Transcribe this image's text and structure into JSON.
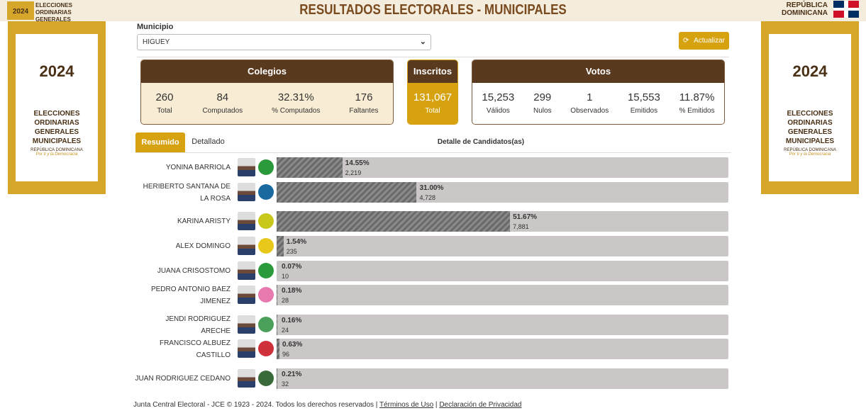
{
  "header": {
    "title": "RESULTADOS ELECTORALES - MUNICIPALES",
    "logo_text": "ELECCIONES ORDINARIAS GENERALES MUNICIPALES",
    "year": "2024",
    "country": "REPÚBLICA DOMINICANA"
  },
  "banner": {
    "year": "2024",
    "title": "ELECCIONES ORDINARIAS GENERALES MUNICIPALES",
    "country": "REPÚBLICA DOMINICANA",
    "slogan": "Por ti y la Democracia"
  },
  "filter": {
    "label": "Municipio",
    "value": "HIGUEY",
    "button": "Actualizar"
  },
  "colegios": {
    "title": "Colegios",
    "stats": [
      {
        "value": "260",
        "label": "Total"
      },
      {
        "value": "84",
        "label": "Computados"
      },
      {
        "value": "32.31%",
        "label": "% Computados"
      },
      {
        "value": "176",
        "label": "Faltantes"
      }
    ]
  },
  "inscritos": {
    "title": "Inscritos",
    "stats": [
      {
        "value": "131,067",
        "label": "Total"
      }
    ]
  },
  "votos": {
    "title": "Votos",
    "stats": [
      {
        "value": "15,253",
        "label": "Válidos"
      },
      {
        "value": "299",
        "label": "Nulos"
      },
      {
        "value": "1",
        "label": "Observados"
      },
      {
        "value": "15,553",
        "label": "Emitidos"
      },
      {
        "value": "11.87%",
        "label": "% Emitidos"
      }
    ]
  },
  "tabs": {
    "items": [
      "Resumido",
      "Detallado"
    ],
    "heading": "Detalle de Candidatos(as)"
  },
  "candidates": [
    {
      "name": "YONINA BARRIOLA",
      "pct": 14.55,
      "pct_label": "14.55%",
      "votes": "2,219"
    },
    {
      "name": "HERIBERTO SANTANA DE LA ROSA",
      "pct": 31.0,
      "pct_label": "31.00%",
      "votes": "4,728"
    },
    {
      "name": "KARINA ARISTY",
      "pct": 51.67,
      "pct_label": "51.67%",
      "votes": "7,881"
    },
    {
      "name": "ALEX DOMINGO",
      "pct": 1.54,
      "pct_label": "1.54%",
      "votes": "235"
    },
    {
      "name": "JUANA CRISOSTOMO",
      "pct": 0.07,
      "pct_label": "0.07%",
      "votes": "10"
    },
    {
      "name": "PEDRO ANTONIO BAEZ JIMENEZ",
      "pct": 0.18,
      "pct_label": "0.18%",
      "votes": "28"
    },
    {
      "name": "JENDI RODRIGUEZ ARECHE",
      "pct": 0.16,
      "pct_label": "0.16%",
      "votes": "24"
    },
    {
      "name": "FRANCISCO ALBUEZ CASTILLO",
      "pct": 0.63,
      "pct_label": "0.63%",
      "votes": "96"
    },
    {
      "name": "JUAN RODRIGUEZ CEDANO",
      "pct": 0.21,
      "pct_label": "0.21%",
      "votes": "32"
    }
  ],
  "footer": {
    "text": "Junta Central Electoral - JCE © 1923 - 2024. Todos los derechos reservados",
    "links": [
      "Términos de Uso",
      "Declaración de Privacidad"
    ]
  }
}
